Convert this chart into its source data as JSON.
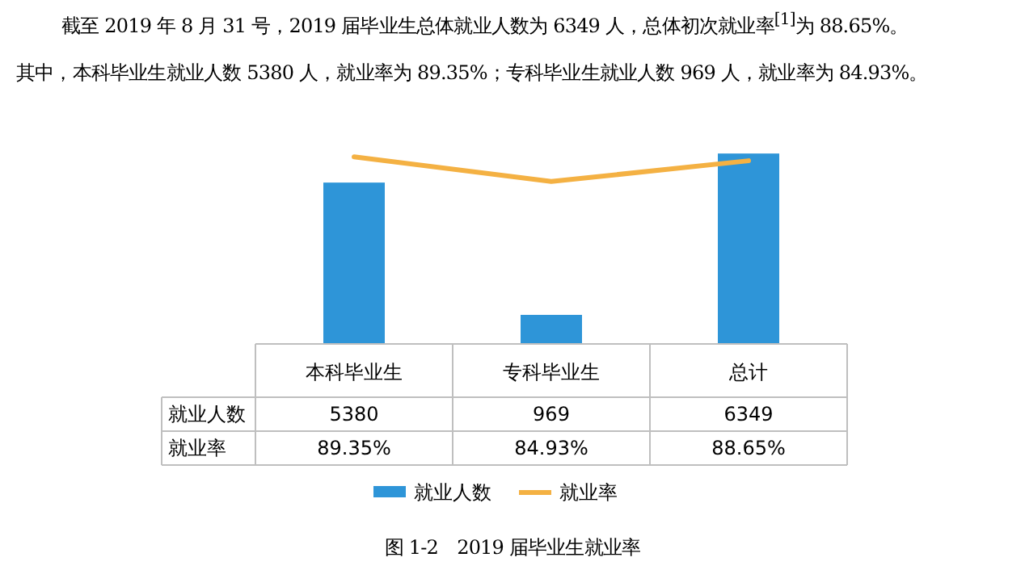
{
  "chart_data": {
    "type": "bar",
    "categories": [
      "本科毕业生",
      "专科毕业生",
      "总计"
    ],
    "series": [
      {
        "name": "就业人数",
        "color": "#2e95d8",
        "values": [
          5380,
          969,
          6349
        ],
        "value_labels": [
          "5380",
          "969",
          "6349"
        ]
      },
      {
        "name": "就业率",
        "type": "line",
        "axis": "y2",
        "color": "#f4b143",
        "values": [
          89.35,
          84.93,
          88.65
        ],
        "value_labels": [
          "89.35%",
          "84.93%",
          "88.65%"
        ]
      }
    ],
    "legend": "bottom",
    "annotations": [
      "截至 2019 年 8 月 31 号，2019 届毕业生总体就业人数为 6349 人，总体初次就业率$^{[1]}$为 88.65%。",
      "其中，本科毕业生就业人数 5380 人，就业率为 89.35%；专科毕业生就业人数 969 人，就业率为 84.93%。",
      "图 1-2　2019 届毕业生就业率"
    ]
  }
}
